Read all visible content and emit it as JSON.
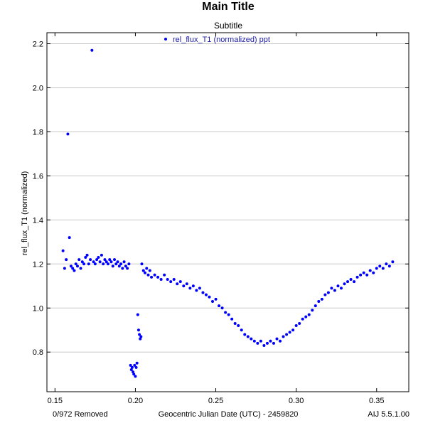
{
  "chart_data": {
    "type": "scatter",
    "title": "Main Title",
    "subtitle": "Subtitle",
    "xlabel": "Geocentric Julian Date (UTC) - 2459820",
    "ylabel": "rel_flux_T1 (normalized)",
    "xlim": [
      0.145,
      0.37
    ],
    "ylim": [
      0.62,
      2.25
    ],
    "xticks": [
      "0.15",
      "0.20",
      "0.25",
      "0.30",
      "0.35"
    ],
    "xtick_values": [
      0.15,
      0.2,
      0.25,
      0.3,
      0.35
    ],
    "yticks": [
      "0.8",
      "1.0",
      "1.2",
      "1.4",
      "1.6",
      "1.8",
      "2.0",
      "2.2"
    ],
    "ytick_values": [
      0.8,
      1.0,
      1.2,
      1.4,
      1.6,
      1.8,
      2.0,
      2.2
    ],
    "grid": "horizontal",
    "legend_placement": "top",
    "series": [
      {
        "name": "rel_flux_T1 (normalized) ppt",
        "color": "#0000ff",
        "points": [
          [
            0.155,
            1.26
          ],
          [
            0.156,
            1.18
          ],
          [
            0.157,
            1.22
          ],
          [
            0.158,
            1.79
          ],
          [
            0.159,
            1.32
          ],
          [
            0.16,
            1.19
          ],
          [
            0.161,
            1.18
          ],
          [
            0.162,
            1.17
          ],
          [
            0.163,
            1.2
          ],
          [
            0.164,
            1.19
          ],
          [
            0.165,
            1.22
          ],
          [
            0.166,
            1.18
          ],
          [
            0.167,
            1.21
          ],
          [
            0.168,
            1.2
          ],
          [
            0.169,
            1.23
          ],
          [
            0.17,
            1.24
          ],
          [
            0.171,
            1.2
          ],
          [
            0.172,
            1.22
          ],
          [
            0.173,
            2.17
          ],
          [
            0.174,
            1.21
          ],
          [
            0.175,
            1.2
          ],
          [
            0.176,
            1.22
          ],
          [
            0.177,
            1.23
          ],
          [
            0.178,
            1.21
          ],
          [
            0.179,
            1.24
          ],
          [
            0.18,
            1.2
          ],
          [
            0.181,
            1.22
          ],
          [
            0.182,
            1.21
          ],
          [
            0.183,
            1.2
          ],
          [
            0.184,
            1.22
          ],
          [
            0.185,
            1.21
          ],
          [
            0.186,
            1.19
          ],
          [
            0.187,
            1.22
          ],
          [
            0.188,
            1.2
          ],
          [
            0.189,
            1.21
          ],
          [
            0.19,
            1.19
          ],
          [
            0.191,
            1.2
          ],
          [
            0.192,
            1.18
          ],
          [
            0.193,
            1.21
          ],
          [
            0.194,
            1.19
          ],
          [
            0.195,
            1.18
          ],
          [
            0.196,
            1.2
          ],
          [
            0.197,
            0.74
          ],
          [
            0.1975,
            0.72
          ],
          [
            0.198,
            0.73
          ],
          [
            0.1985,
            0.71
          ],
          [
            0.199,
            0.7
          ],
          [
            0.1995,
            0.74
          ],
          [
            0.2,
            0.69
          ],
          [
            0.2005,
            0.73
          ],
          [
            0.201,
            0.75
          ],
          [
            0.2015,
            0.97
          ],
          [
            0.202,
            0.9
          ],
          [
            0.2025,
            0.88
          ],
          [
            0.203,
            0.86
          ],
          [
            0.2035,
            0.87
          ],
          [
            0.204,
            1.2
          ],
          [
            0.205,
            1.17
          ],
          [
            0.206,
            1.16
          ],
          [
            0.207,
            1.18
          ],
          [
            0.208,
            1.15
          ],
          [
            0.209,
            1.17
          ],
          [
            0.21,
            1.14
          ],
          [
            0.212,
            1.15
          ],
          [
            0.214,
            1.14
          ],
          [
            0.216,
            1.13
          ],
          [
            0.218,
            1.15
          ],
          [
            0.22,
            1.13
          ],
          [
            0.222,
            1.12
          ],
          [
            0.224,
            1.13
          ],
          [
            0.226,
            1.11
          ],
          [
            0.228,
            1.12
          ],
          [
            0.23,
            1.1
          ],
          [
            0.232,
            1.11
          ],
          [
            0.234,
            1.09
          ],
          [
            0.236,
            1.1
          ],
          [
            0.238,
            1.08
          ],
          [
            0.24,
            1.09
          ],
          [
            0.242,
            1.07
          ],
          [
            0.244,
            1.06
          ],
          [
            0.246,
            1.05
          ],
          [
            0.248,
            1.03
          ],
          [
            0.25,
            1.04
          ],
          [
            0.252,
            1.01
          ],
          [
            0.254,
            1.0
          ],
          [
            0.256,
            0.98
          ],
          [
            0.258,
            0.97
          ],
          [
            0.26,
            0.95
          ],
          [
            0.262,
            0.93
          ],
          [
            0.264,
            0.92
          ],
          [
            0.266,
            0.9
          ],
          [
            0.268,
            0.88
          ],
          [
            0.27,
            0.87
          ],
          [
            0.272,
            0.86
          ],
          [
            0.274,
            0.85
          ],
          [
            0.276,
            0.84
          ],
          [
            0.278,
            0.85
          ],
          [
            0.28,
            0.83
          ],
          [
            0.282,
            0.84
          ],
          [
            0.284,
            0.85
          ],
          [
            0.286,
            0.84
          ],
          [
            0.288,
            0.86
          ],
          [
            0.29,
            0.85
          ],
          [
            0.292,
            0.87
          ],
          [
            0.294,
            0.88
          ],
          [
            0.296,
            0.89
          ],
          [
            0.298,
            0.9
          ],
          [
            0.3,
            0.92
          ],
          [
            0.302,
            0.93
          ],
          [
            0.304,
            0.95
          ],
          [
            0.306,
            0.96
          ],
          [
            0.308,
            0.97
          ],
          [
            0.31,
            0.99
          ],
          [
            0.312,
            1.01
          ],
          [
            0.314,
            1.03
          ],
          [
            0.316,
            1.04
          ],
          [
            0.318,
            1.06
          ],
          [
            0.32,
            1.07
          ],
          [
            0.322,
            1.09
          ],
          [
            0.324,
            1.08
          ],
          [
            0.326,
            1.1
          ],
          [
            0.328,
            1.09
          ],
          [
            0.33,
            1.11
          ],
          [
            0.332,
            1.12
          ],
          [
            0.334,
            1.13
          ],
          [
            0.336,
            1.12
          ],
          [
            0.338,
            1.14
          ],
          [
            0.34,
            1.15
          ],
          [
            0.342,
            1.16
          ],
          [
            0.344,
            1.15
          ],
          [
            0.346,
            1.17
          ],
          [
            0.348,
            1.16
          ],
          [
            0.35,
            1.18
          ],
          [
            0.352,
            1.19
          ],
          [
            0.354,
            1.18
          ],
          [
            0.356,
            1.2
          ],
          [
            0.358,
            1.19
          ],
          [
            0.36,
            1.21
          ]
        ]
      }
    ]
  },
  "footer": {
    "removed": "0/972 Removed",
    "version": "AIJ 5.5.1.00"
  }
}
